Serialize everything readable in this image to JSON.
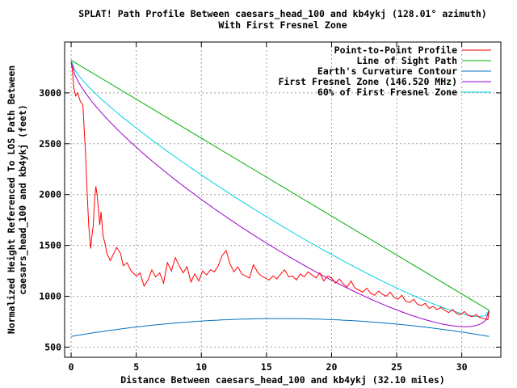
{
  "chart_data": {
    "type": "line",
    "title": "SPLAT! Path Profile Between caesars_head_100 and kb4ykj (128.01° azimuth)",
    "subtitle": "With First Fresnel Zone",
    "xlabel": "Distance Between caesars_head_100 and kb4ykj (32.10 miles)",
    "ylabel_line1": "Normalized Height Referenced To LOS Path Between",
    "ylabel_line2": "caesars_head_100 and kb4ykj (feet)",
    "xlim": [
      -0.5,
      33.0
    ],
    "ylim": [
      400,
      3500
    ],
    "xticks": [
      0,
      5,
      10,
      15,
      20,
      25,
      30
    ],
    "yticks": [
      500,
      1000,
      1500,
      2000,
      2500,
      3000
    ],
    "grid": true,
    "legend_position": "top-right",
    "series": [
      {
        "name": "Point-to-Point Profile",
        "color": "#ff0000",
        "x": [
          0,
          0.1,
          0.2,
          0.35,
          0.5,
          0.7,
          0.9,
          1.0,
          1.1,
          1.2,
          1.35,
          1.5,
          1.6,
          1.7,
          1.8,
          1.9,
          2.0,
          2.1,
          2.2,
          2.3,
          2.45,
          2.6,
          2.75,
          2.9,
          3.0,
          3.2,
          3.5,
          3.8,
          4.0,
          4.3,
          4.6,
          5.0,
          5.3,
          5.6,
          5.9,
          6.2,
          6.5,
          6.8,
          7.1,
          7.4,
          7.7,
          8.0,
          8.3,
          8.6,
          8.9,
          9.2,
          9.5,
          9.8,
          10.1,
          10.4,
          10.7,
          11.0,
          11.3,
          11.6,
          11.9,
          12.2,
          12.5,
          12.8,
          13.1,
          13.4,
          13.7,
          14.0,
          14.3,
          14.6,
          14.9,
          15.2,
          15.5,
          15.8,
          16.1,
          16.4,
          16.7,
          17.0,
          17.3,
          17.6,
          17.9,
          18.2,
          18.5,
          18.8,
          19.1,
          19.4,
          19.7,
          20.0,
          20.3,
          20.6,
          20.9,
          21.2,
          21.5,
          21.8,
          22.1,
          22.4,
          22.7,
          23.0,
          23.3,
          23.6,
          23.9,
          24.2,
          24.5,
          24.8,
          25.1,
          25.4,
          25.7,
          26.0,
          26.3,
          26.6,
          26.9,
          27.2,
          27.5,
          27.8,
          28.1,
          28.4,
          28.7,
          29.0,
          29.3,
          29.6,
          29.9,
          30.2,
          30.5,
          30.8,
          31.1,
          31.4,
          31.7,
          32.0,
          32.1
        ],
        "y": [
          3300,
          3220,
          3050,
          2970,
          3000,
          2920,
          2880,
          2650,
          2420,
          2100,
          1700,
          1470,
          1600,
          1700,
          1950,
          2080,
          1990,
          1850,
          1700,
          1830,
          1590,
          1520,
          1420,
          1380,
          1350,
          1400,
          1480,
          1420,
          1300,
          1330,
          1250,
          1200,
          1230,
          1100,
          1160,
          1260,
          1190,
          1230,
          1130,
          1330,
          1250,
          1380,
          1300,
          1230,
          1290,
          1140,
          1220,
          1150,
          1250,
          1210,
          1260,
          1240,
          1300,
          1400,
          1450,
          1320,
          1240,
          1290,
          1220,
          1200,
          1180,
          1310,
          1240,
          1200,
          1180,
          1160,
          1200,
          1170,
          1220,
          1260,
          1190,
          1200,
          1160,
          1220,
          1190,
          1240,
          1210,
          1180,
          1230,
          1150,
          1200,
          1180,
          1130,
          1170,
          1120,
          1090,
          1150,
          1080,
          1060,
          1040,
          1080,
          1030,
          1010,
          1050,
          1020,
          1000,
          1040,
          990,
          970,
          1010,
          950,
          940,
          970,
          920,
          910,
          930,
          880,
          900,
          870,
          890,
          860,
          840,
          870,
          830,
          820,
          850,
          810,
          800,
          820,
          790,
          780,
          770,
          860
        ]
      },
      {
        "name": "Line of Sight Path",
        "color": "#00b000",
        "endpoints": [
          [
            0,
            3320
          ],
          [
            32.1,
            862
          ]
        ]
      },
      {
        "name": "Earth's Curvature Contour",
        "color": "#0070c0",
        "curve": {
          "start": 605,
          "end": 605,
          "peak": 781
        }
      },
      {
        "name": "First Fresnel Zone (146.520 MHz)",
        "color": "#a000c8",
        "fresnel_fraction": 1.0,
        "fresnel_max_ft": 650
      },
      {
        "name": "60% of First Fresnel Zone",
        "color": "#00d0e0",
        "fresnel_fraction": 0.6,
        "fresnel_max_ft": 650
      }
    ]
  }
}
